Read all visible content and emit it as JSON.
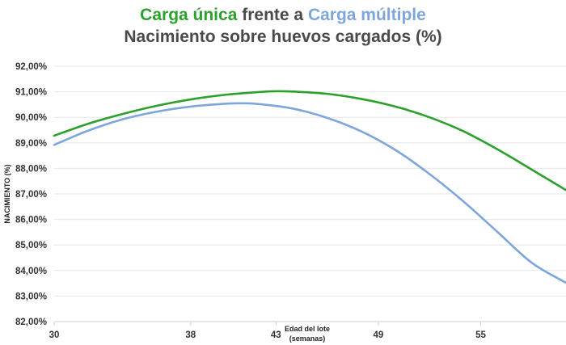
{
  "title": {
    "part1": "Carga única",
    "part2": "frente a",
    "part3": "Carga múltiple",
    "line2": "Nacimiento sobre huevos cargados (%)"
  },
  "colors": {
    "carga_unica": "#2ca02c",
    "carga_multiple": "#7ea6dc",
    "title_gray": "#4a4a4a",
    "grid": "#e6e6e6"
  },
  "chart_data": {
    "type": "line",
    "title": "Carga única frente a Carga múltiple — Nacimiento sobre huevos cargados (%)",
    "xlabel": "Edad del lote (semanas)",
    "xlabel_line1": "Edad del lote",
    "xlabel_line2": "(semanas)",
    "ylabel": "NACIMIENTO (%)",
    "xlim": [
      30,
      60
    ],
    "ylim": [
      82,
      92
    ],
    "x_ticks": [
      30,
      38,
      43,
      49,
      55
    ],
    "y_ticks": [
      "82,00%",
      "83,00%",
      "84,00%",
      "85,00%",
      "86,00%",
      "87,00%",
      "88,00%",
      "89,00%",
      "90,00%",
      "91,00%",
      "92,00%"
    ],
    "y_tick_values": [
      82,
      83,
      84,
      85,
      86,
      87,
      88,
      89,
      90,
      91,
      92
    ],
    "grid": true,
    "series": [
      {
        "name": "Carga única",
        "color": "#2ca02c",
        "x": [
          30,
          32,
          34,
          36,
          38,
          40,
          42,
          43,
          44,
          46,
          48,
          50,
          52,
          54,
          56,
          58,
          60
        ],
        "y": [
          89.28,
          89.75,
          90.13,
          90.45,
          90.7,
          90.88,
          90.99,
          91.02,
          91.01,
          90.92,
          90.72,
          90.42,
          90.0,
          89.45,
          88.74,
          87.95,
          87.15
        ]
      },
      {
        "name": "Carga múltiple",
        "color": "#7ea6dc",
        "x": [
          30,
          32,
          34,
          36,
          38,
          40,
          41,
          42,
          44,
          46,
          48,
          50,
          52,
          54,
          56,
          58,
          60
        ],
        "y": [
          88.92,
          89.48,
          89.92,
          90.22,
          90.42,
          90.53,
          90.55,
          90.52,
          90.34,
          89.98,
          89.45,
          88.72,
          87.78,
          86.7,
          85.5,
          84.3,
          83.52
        ]
      }
    ]
  }
}
